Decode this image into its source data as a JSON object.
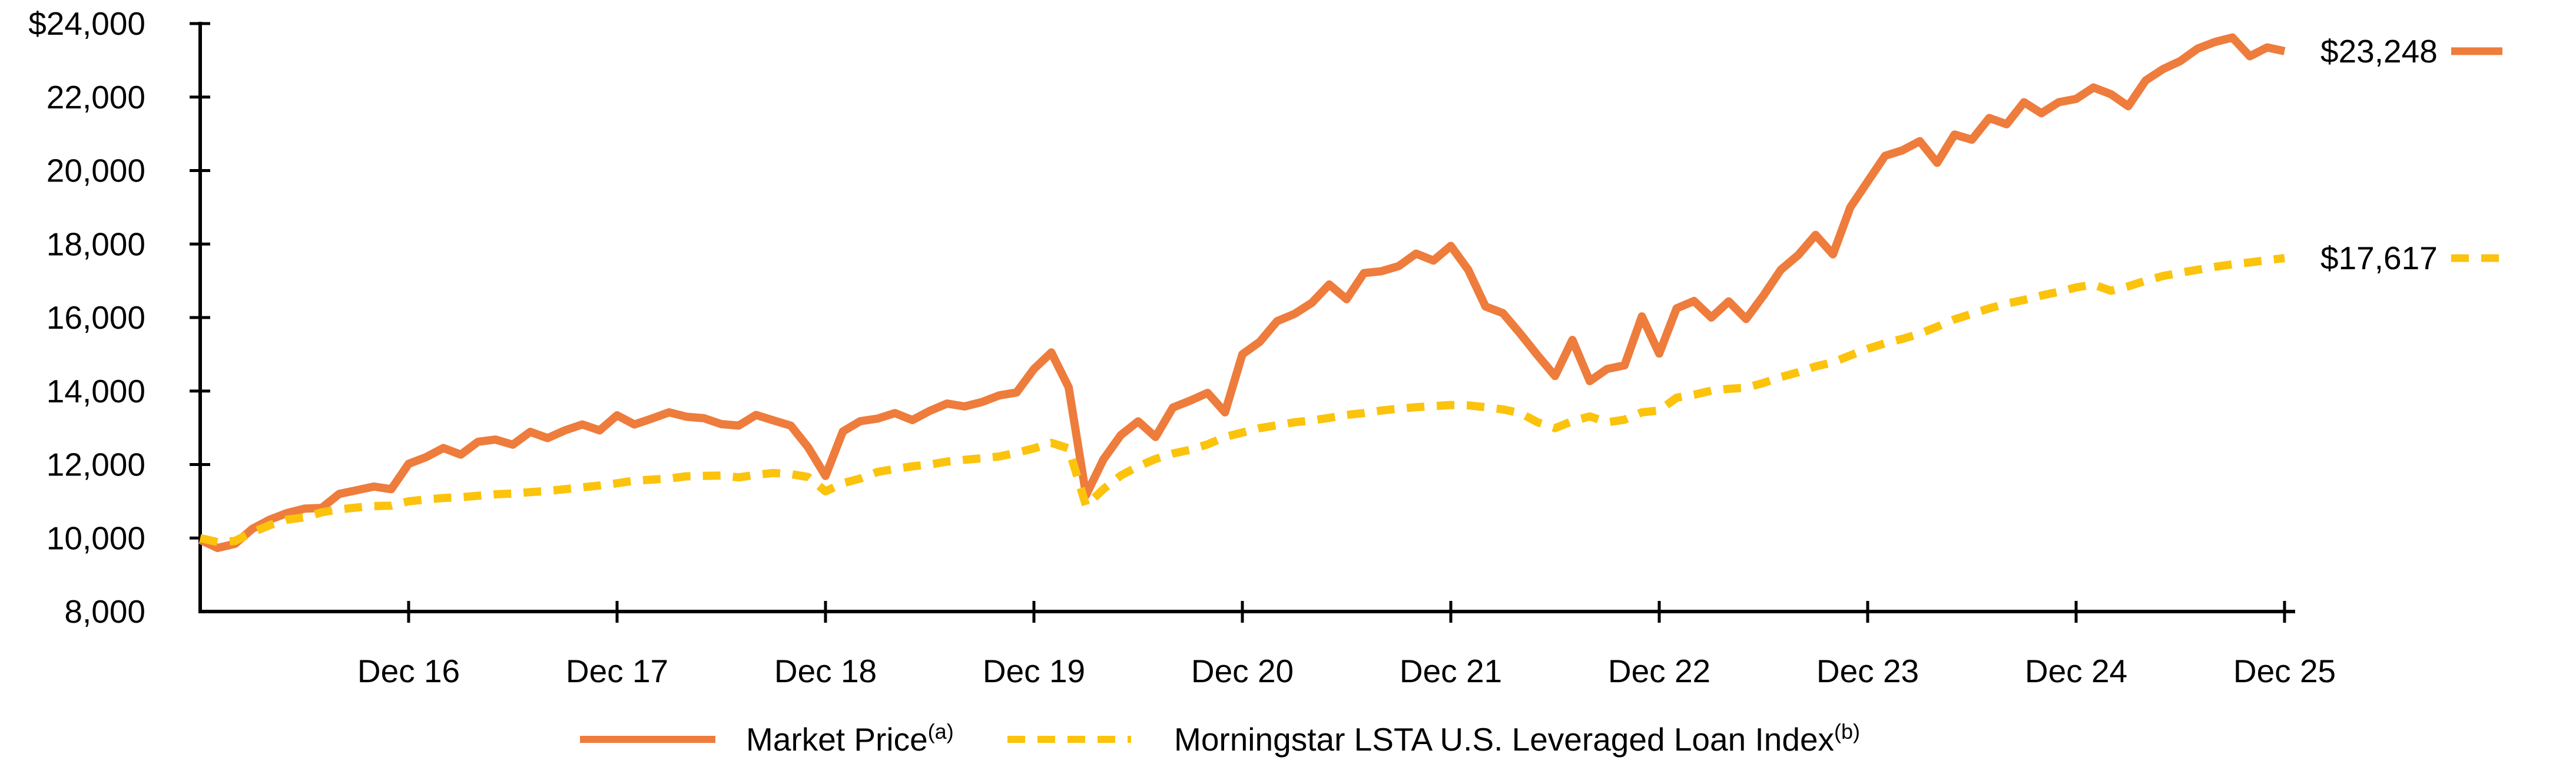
{
  "chart_data": {
    "type": "line",
    "title": "",
    "grid": "off",
    "legend_position": "bottom-center",
    "y_axis": {
      "range": [
        8000,
        24000
      ],
      "tick_values": [
        8000,
        10000,
        12000,
        14000,
        16000,
        18000,
        20000,
        22000,
        24000
      ],
      "tick_labels": [
        "8,000",
        "10,000",
        "12,000",
        "14,000",
        "16,000",
        "18,000",
        "20,000",
        "22,000",
        "$24,000"
      ]
    },
    "x_axis": {
      "tick_labels": [
        "Dec 16",
        "Dec 17",
        "Dec 18",
        "Dec 19",
        "Dec 20",
        "Dec 21",
        "Dec 22",
        "Dec 23",
        "Dec 24",
        "Dec 25"
      ],
      "points_per_year": 12,
      "start": "one year before first tick"
    },
    "series": [
      {
        "name": "Market Price",
        "superscript": "(a)",
        "style": "solid",
        "color": "#EE7C3C",
        "end_label": "$23,248",
        "end_value": 23248,
        "values": [
          9950,
          9730,
          9840,
          10250,
          10500,
          10680,
          10800,
          10820,
          11200,
          11300,
          11400,
          11330,
          12020,
          12200,
          12450,
          12270,
          12620,
          12680,
          12540,
          12890,
          12720,
          12930,
          13090,
          12930,
          13340,
          13090,
          13250,
          13420,
          13300,
          13260,
          13100,
          13060,
          13350,
          13200,
          13060,
          12470,
          11690,
          12900,
          13180,
          13250,
          13400,
          13210,
          13460,
          13660,
          13580,
          13700,
          13880,
          13960,
          14600,
          15050,
          14100,
          11170,
          12140,
          12800,
          13175,
          12750,
          13550,
          13740,
          13950,
          13420,
          15000,
          15340,
          15900,
          16100,
          16400,
          16900,
          16500,
          17210,
          17260,
          17400,
          17740,
          17550,
          17950,
          17300,
          16300,
          16120,
          15560,
          14970,
          14410,
          15390,
          14270,
          14600,
          14700,
          16030,
          15020,
          16250,
          16450,
          16000,
          16440,
          15960,
          16600,
          17300,
          17700,
          18250,
          17720,
          19000,
          19700,
          20400,
          20550,
          20800,
          20210,
          20980,
          20840,
          21430,
          21260,
          21860,
          21560,
          21860,
          21950,
          22260,
          22080,
          21750,
          22450,
          22760,
          22980,
          23320,
          23500,
          23620,
          23110,
          23350,
          23248
        ]
      },
      {
        "name": "Morningstar LSTA U.S. Leveraged Loan Index",
        "superscript": "(b)",
        "style": "dashed",
        "color": "#FCC30D",
        "end_label": "$17,617",
        "end_value": 17617,
        "values": [
          10000,
          9890,
          9920,
          10150,
          10350,
          10500,
          10560,
          10700,
          10780,
          10830,
          10870,
          10880,
          11000,
          11050,
          11090,
          11110,
          11150,
          11190,
          11210,
          11250,
          11280,
          11330,
          11380,
          11430,
          11490,
          11560,
          11590,
          11620,
          11680,
          11690,
          11700,
          11650,
          11720,
          11770,
          11740,
          11660,
          11270,
          11490,
          11620,
          11800,
          11880,
          11950,
          12000,
          12080,
          12130,
          12170,
          12220,
          12320,
          12440,
          12590,
          12440,
          10880,
          11330,
          11700,
          11950,
          12150,
          12300,
          12400,
          12550,
          12750,
          12870,
          12990,
          13070,
          13150,
          13200,
          13270,
          13350,
          13400,
          13470,
          13520,
          13560,
          13590,
          13620,
          13610,
          13560,
          13500,
          13400,
          13150,
          12990,
          13180,
          13310,
          13150,
          13220,
          13420,
          13470,
          13820,
          13900,
          14010,
          14060,
          14090,
          14220,
          14380,
          14510,
          14670,
          14780,
          14970,
          15150,
          15300,
          15420,
          15560,
          15750,
          15950,
          16100,
          16250,
          16380,
          16480,
          16600,
          16700,
          16820,
          16900,
          16730,
          16850,
          17000,
          17130,
          17220,
          17300,
          17380,
          17450,
          17500,
          17560,
          17617
        ]
      }
    ]
  },
  "legend": {
    "items": [
      {
        "label": "Market Price",
        "superscript": "(a)",
        "swatch": "solid-line-swatch",
        "color": "#EE7C3C"
      },
      {
        "label": "Morningstar LSTA U.S. Leveraged Loan Index",
        "superscript": "(b)",
        "swatch": "dashed-line-swatch",
        "color": "#FCC30D"
      }
    ]
  },
  "colors": {
    "axis": "#000000",
    "text": "#000000",
    "background": "#ffffff"
  }
}
